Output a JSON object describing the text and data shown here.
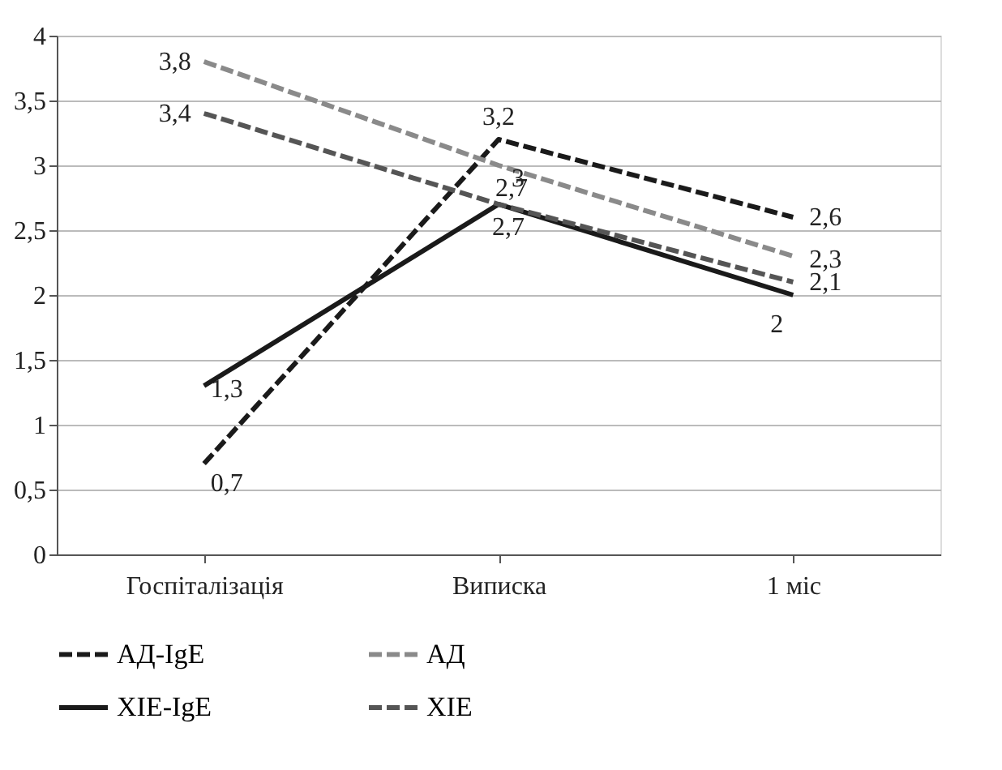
{
  "chart_data": {
    "type": "line",
    "categories": [
      "Госпіталізація",
      "Виписка",
      "1 міс"
    ],
    "series": [
      {
        "name": "АД-IgE",
        "color": "#1a1a1a",
        "line_style": "dashed",
        "values": [
          0.7,
          3.2,
          2.6
        ],
        "value_labels": [
          "0,7",
          "3,2",
          "2,6"
        ]
      },
      {
        "name": "АД",
        "color": "#8a8a8a",
        "line_style": "dashed",
        "values": [
          3.8,
          3,
          2.3
        ],
        "value_labels": [
          "3,8",
          "3",
          "2,3"
        ]
      },
      {
        "name": "ХІЕ-IgE",
        "color": "#1a1a1a",
        "line_style": "solid",
        "values": [
          1.3,
          2.7,
          2
        ],
        "value_labels": [
          "1,3",
          "2,7",
          "2"
        ]
      },
      {
        "name": "ХІЕ",
        "color": "#555555",
        "line_style": "dashed",
        "values": [
          3.4,
          2.7,
          2.1
        ],
        "value_labels": [
          "3,4",
          "2,7",
          "2,1"
        ]
      }
    ],
    "ylim": [
      0,
      4
    ],
    "yticks": [
      0,
      {
        "value": 0.5,
        "label": "0,5"
      },
      1,
      {
        "value": 1.5,
        "label": "1,5"
      },
      2,
      {
        "value": 2.5,
        "label": "2,5"
      },
      3,
      {
        "value": 3.5,
        "label": "3,5"
      },
      4
    ],
    "grid": "y",
    "legend": "bottom",
    "marker": "none"
  }
}
